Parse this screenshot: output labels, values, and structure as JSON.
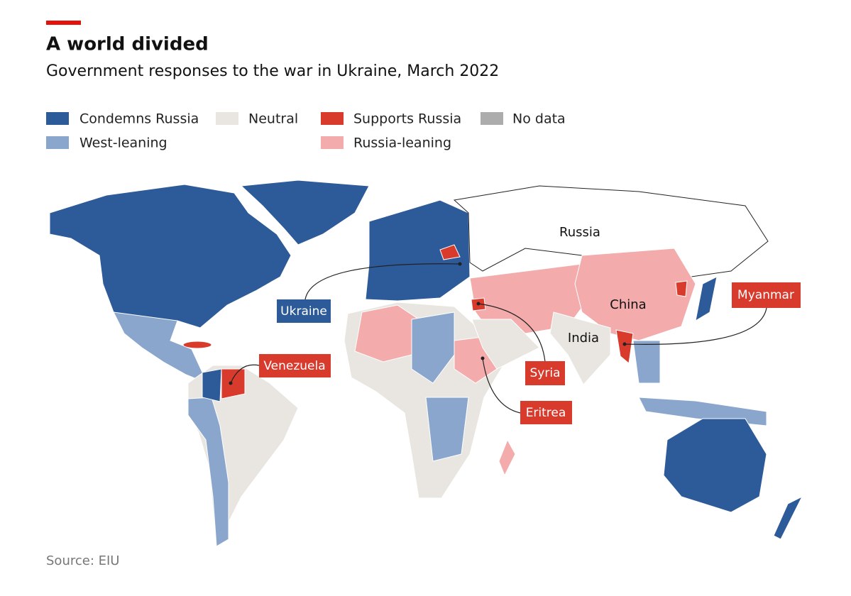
{
  "header": {
    "title": "A world divided",
    "subtitle": "Government responses to the war in Ukraine, March 2022"
  },
  "legend": [
    {
      "label": "Condemns Russia",
      "color": "#2d5a98"
    },
    {
      "label": "West-leaning",
      "color": "#8aa6cd"
    },
    {
      "label": "Neutral",
      "color": "#e9e6e1"
    },
    {
      "label": "Supports Russia",
      "color": "#d83a2c"
    },
    {
      "label": "Russia-leaning",
      "color": "#f3abab"
    },
    {
      "label": "No data",
      "color": "#acacac"
    }
  ],
  "map_labels": [
    "Russia",
    "China",
    "India"
  ],
  "callouts": [
    "Ukraine",
    "Venezuela",
    "Syria",
    "Eritrea",
    "Myanmar"
  ],
  "source": "Source: EIU"
}
